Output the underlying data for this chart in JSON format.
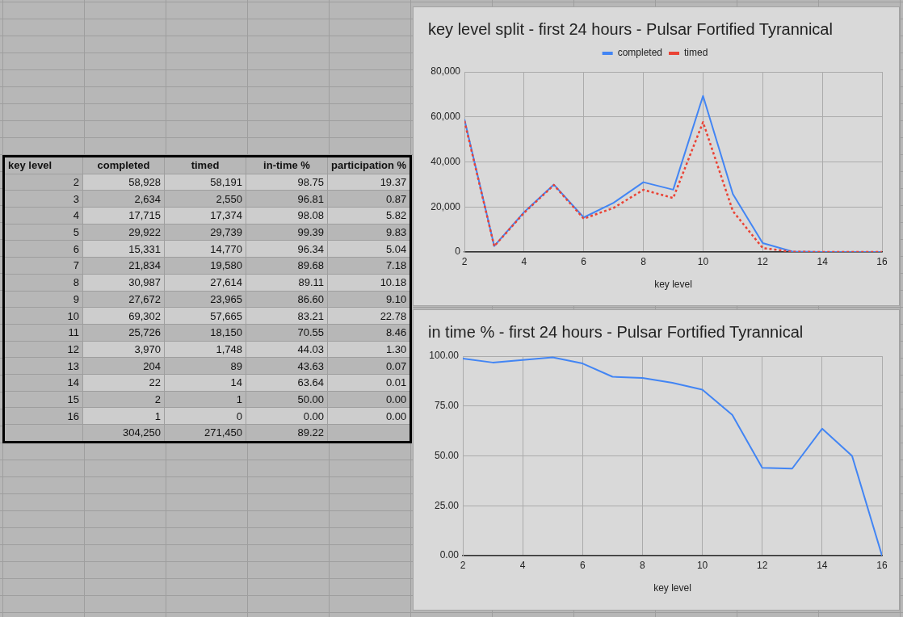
{
  "chart_data": [
    {
      "type": "heatmap",
      "ylabel": "key level",
      "categories": [
        "completed",
        "timed",
        "in-time %",
        "participation %"
      ],
      "y_categories": [
        "2",
        "3",
        "4",
        "5",
        "6",
        "7",
        "8",
        "9",
        "10",
        "11",
        "12",
        "13",
        "14",
        "15",
        "16",
        null
      ],
      "cells": [
        [
          58928,
          58191,
          98.75,
          19.37
        ],
        [
          2634,
          2550,
          96.81,
          0.87
        ],
        [
          17715,
          17374,
          98.08,
          5.82
        ],
        [
          29922,
          29739,
          99.39,
          9.83
        ],
        [
          15331,
          14770,
          96.34,
          5.04
        ],
        [
          21834,
          19580,
          89.68,
          7.18
        ],
        [
          30987,
          27614,
          89.11,
          10.18
        ],
        [
          27672,
          23965,
          86.6,
          9.1
        ],
        [
          69302,
          57665,
          83.21,
          22.78
        ],
        [
          25726,
          18150,
          70.55,
          8.46
        ],
        [
          3970,
          1748,
          44.03,
          1.3
        ],
        [
          204,
          89,
          43.63,
          0.07
        ],
        [
          22,
          14,
          63.64,
          0.01
        ],
        [
          2,
          1,
          50,
          0
        ],
        [
          1,
          0,
          0,
          0
        ],
        [
          304250,
          271450,
          89.22,
          null
        ]
      ],
      "cell_labels": [
        [
          "58,928",
          "58,191",
          "98.75",
          "19.37"
        ],
        [
          "2,634",
          "2,550",
          "96.81",
          "0.87"
        ],
        [
          "17,715",
          "17,374",
          "98.08",
          "5.82"
        ],
        [
          "29,922",
          "29,739",
          "99.39",
          "9.83"
        ],
        [
          "15,331",
          "14,770",
          "96.34",
          "5.04"
        ],
        [
          "21,834",
          "19,580",
          "89.68",
          "7.18"
        ],
        [
          "30,987",
          "27,614",
          "89.11",
          "10.18"
        ],
        [
          "27,672",
          "23,965",
          "86.60",
          "9.10"
        ],
        [
          "69,302",
          "57,665",
          "83.21",
          "22.78"
        ],
        [
          "25,726",
          "18,150",
          "70.55",
          "8.46"
        ],
        [
          "3,970",
          "1,748",
          "44.03",
          "1.30"
        ],
        [
          "204",
          "89",
          "43.63",
          "0.07"
        ],
        [
          "22",
          "14",
          "63.64",
          "0.01"
        ],
        [
          "2",
          "1",
          "50.00",
          "0.00"
        ],
        [
          "1",
          "0",
          "0.00",
          "0.00"
        ],
        [
          "304,250",
          "271,450",
          "89.22",
          null
        ]
      ],
      "data_labels": true
    },
    {
      "type": "line",
      "title": "key level split - first 24 hours - Pulsar Fortified Tyrannical",
      "xlabel": "key level",
      "x": [
        2,
        3,
        4,
        5,
        6,
        7,
        8,
        9,
        10,
        11,
        12,
        13,
        14,
        15,
        16
      ],
      "series": [
        {
          "name": "completed",
          "color": "#4285f4",
          "values": [
            58928,
            2634,
            17715,
            29922,
            15331,
            21834,
            30987,
            27672,
            69302,
            25726,
            3970,
            204,
            22,
            2,
            1
          ]
        },
        {
          "name": "timed",
          "color": "#ea4335",
          "line_style": "dotted",
          "values": [
            58191,
            2550,
            17374,
            29739,
            14770,
            19580,
            27614,
            23965,
            57665,
            18150,
            1748,
            89,
            14,
            1,
            0
          ]
        }
      ],
      "xlim": [
        2,
        16
      ],
      "xticks": [
        2,
        4,
        6,
        8,
        10,
        12,
        14,
        16
      ],
      "ylim": [
        0,
        80000
      ],
      "yticks": [
        0,
        {
          "value": 20000,
          "label": "20,000"
        },
        {
          "value": 40000,
          "label": "40,000"
        },
        {
          "value": 60000,
          "label": "60,000"
        },
        {
          "value": 80000,
          "label": "80,000"
        }
      ],
      "grid": true,
      "legend": "top"
    },
    {
      "type": "line",
      "title": "in time % - first 24 hours - Pulsar Fortified Tyrannical",
      "xlabel": "key level",
      "x": [
        2,
        3,
        4,
        5,
        6,
        7,
        8,
        9,
        10,
        11,
        12,
        13,
        14,
        15,
        16
      ],
      "series": [
        {
          "color": "#4285f4",
          "values": [
            98.75,
            96.81,
            98.08,
            99.39,
            96.34,
            89.68,
            89.11,
            86.6,
            83.21,
            70.55,
            44.03,
            43.63,
            63.64,
            50,
            0
          ]
        }
      ],
      "xlim": [
        2,
        16
      ],
      "xticks": [
        2,
        4,
        6,
        8,
        10,
        12,
        14,
        16
      ],
      "ylim": [
        0,
        100
      ],
      "yticks": [
        {
          "value": 0,
          "label": "0.00"
        },
        {
          "value": 25,
          "label": "25.00"
        },
        {
          "value": 50,
          "label": "50.00"
        },
        {
          "value": 75,
          "label": "75.00"
        },
        {
          "value": 100,
          "label": "100.00"
        }
      ],
      "grid": true
    }
  ]
}
